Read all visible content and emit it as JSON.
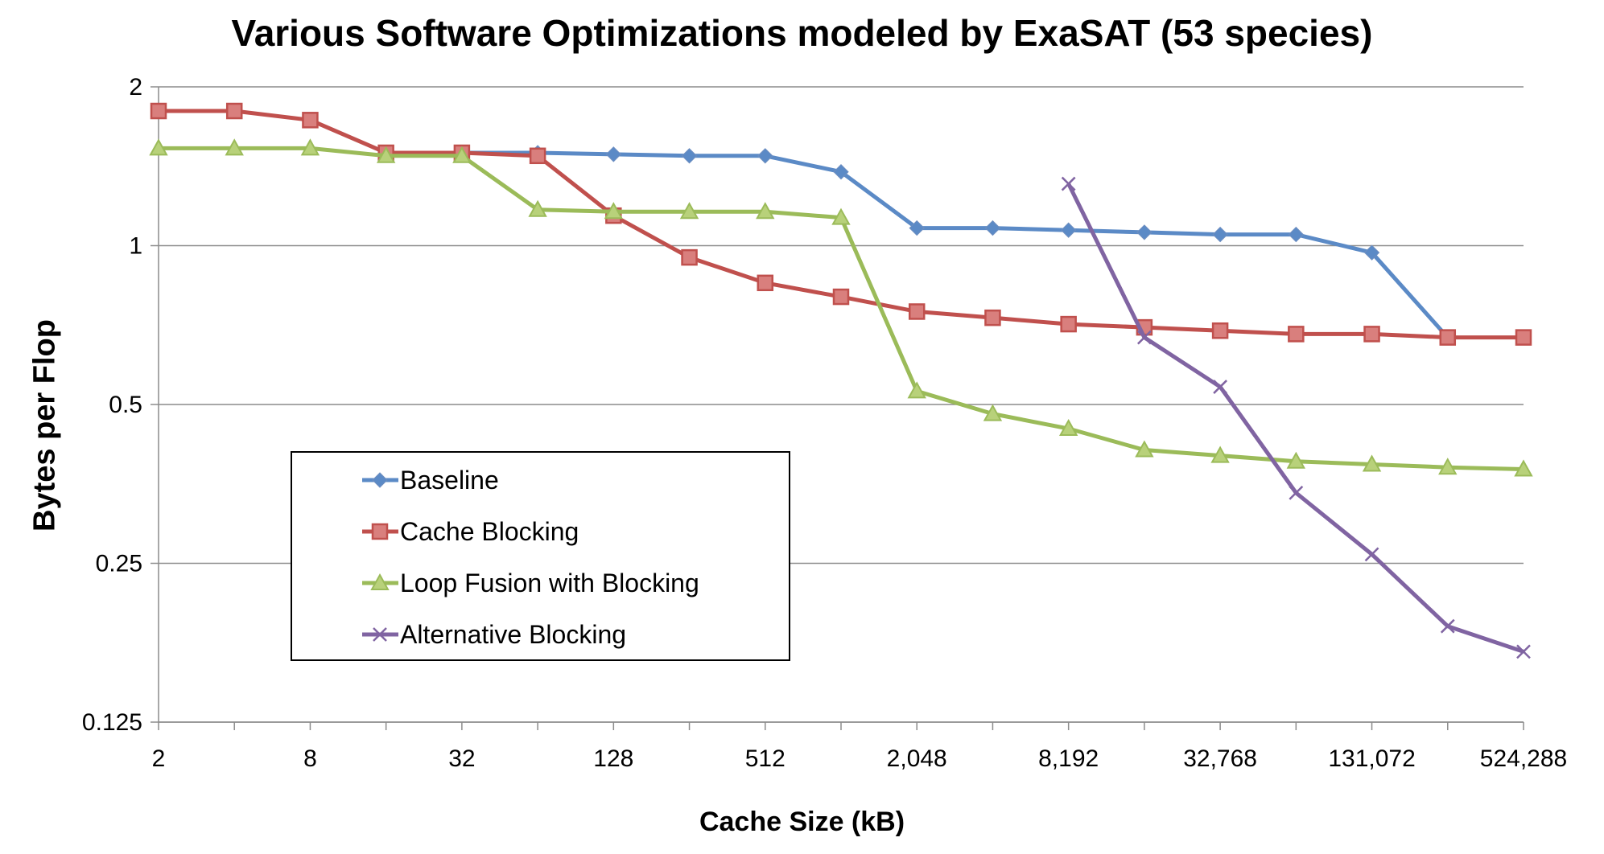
{
  "chart_data": {
    "type": "line",
    "title": "Various Software Optimizations modeled by ExaSAT (53 species)",
    "xlabel": "Cache Size (kB)",
    "ylabel": "Bytes per Flop",
    "x_scale": "log2",
    "y_scale": "log2",
    "xlim": [
      2,
      524288
    ],
    "ylim": [
      0.125,
      2
    ],
    "x_tick_labels": [
      "2",
      "8",
      "32",
      "128",
      "512",
      "2,048",
      "8,192",
      "32,768",
      "131,072",
      "524,288"
    ],
    "x_tick_values": [
      2,
      8,
      32,
      128,
      512,
      2048,
      8192,
      32768,
      131072,
      524288
    ],
    "y_tick_labels": [
      "0.125",
      "0.25",
      "0.5",
      "1",
      "2"
    ],
    "y_tick_values": [
      0.125,
      0.25,
      0.5,
      1,
      2
    ],
    "grid": "horizontal",
    "legend_position": "lower-left",
    "x": [
      2,
      4,
      8,
      16,
      32,
      64,
      128,
      256,
      512,
      1024,
      2048,
      4096,
      8192,
      16384,
      32768,
      65536,
      131072,
      262144,
      524288
    ],
    "series": [
      {
        "name": "Baseline",
        "color": "#5b8ac6",
        "marker": "diamond",
        "values": [
          null,
          null,
          null,
          null,
          1.5,
          1.5,
          1.49,
          1.48,
          1.48,
          1.38,
          1.08,
          1.08,
          1.07,
          1.06,
          1.05,
          1.05,
          0.97,
          0.67,
          null
        ]
      },
      {
        "name": "Cache Blocking",
        "color": "#c0504d",
        "marker": "square",
        "values": [
          1.8,
          1.8,
          1.73,
          1.5,
          1.5,
          1.48,
          1.14,
          0.95,
          0.85,
          0.8,
          0.75,
          0.73,
          0.71,
          0.7,
          0.69,
          0.68,
          0.68,
          0.67,
          0.67
        ]
      },
      {
        "name": "Loop Fusion with Blocking",
        "color": "#9bbb59",
        "marker": "triangle",
        "values": [
          1.53,
          1.53,
          1.53,
          1.48,
          1.48,
          1.17,
          1.16,
          1.16,
          1.16,
          1.13,
          0.53,
          0.48,
          0.45,
          0.41,
          0.4,
          0.39,
          0.385,
          0.38,
          0.377
        ]
      },
      {
        "name": "Alternative Blocking",
        "color": "#8064a2",
        "marker": "x",
        "values": [
          null,
          null,
          null,
          null,
          null,
          null,
          null,
          null,
          null,
          null,
          null,
          null,
          1.31,
          0.67,
          0.54,
          0.34,
          0.26,
          0.19,
          0.17
        ]
      }
    ]
  }
}
